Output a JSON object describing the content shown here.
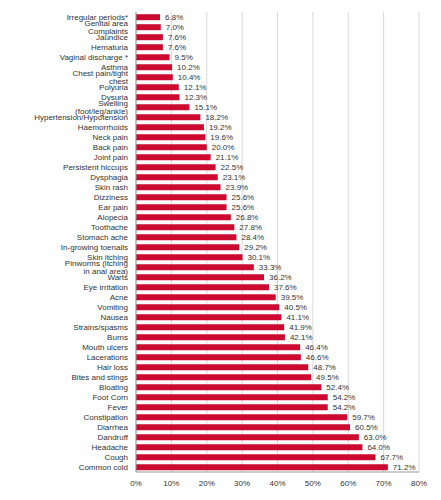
{
  "chart_data": {
    "type": "bar",
    "orientation": "horizontal",
    "color": "#cc0a2f",
    "grid": true,
    "data_labels": true,
    "categories": [
      "Irregular periods*",
      "Genital area Complaints",
      "Jaundice",
      "Hematuria",
      "Vaginal discharge *",
      "Asthma",
      "Chest pain/tight chest",
      "Polyuria",
      "Dysuria",
      "Swelling (foot/leg/ankle)",
      "Hypertension/Hypotension",
      "Haemorrhoids",
      "Neck pain",
      "Back pain",
      "Joint pain",
      "Persistent hiccups",
      "Dysphagia",
      "Skin rash",
      "Dizziness",
      "Ear pain",
      "Alopecia",
      "Toothache",
      "Stomach ache",
      "In-growing toenails",
      "Skin itching",
      "Pinworms (itching in anal area)",
      "Warts",
      "Eye irritation",
      "Acne",
      "Vomiting",
      "Nausea",
      "Strains/spasms",
      "Burns",
      "Mouth ulcers",
      "Lacerations",
      "Hair loss",
      "Bites and stings",
      "Bloating",
      "Foot Corn",
      "Fever",
      "Constipation",
      "Diarrhea",
      "Dandruff",
      "Headache",
      "Cough",
      "Common cold"
    ],
    "values": [
      6.8,
      7.0,
      7.6,
      7.6,
      9.5,
      10.2,
      10.4,
      12.1,
      12.3,
      15.1,
      18.2,
      19.2,
      19.6,
      20.0,
      21.1,
      22.5,
      23.1,
      23.9,
      25.6,
      25.6,
      26.8,
      27.8,
      28.4,
      29.2,
      30.1,
      33.3,
      36.2,
      37.6,
      39.5,
      40.5,
      41.1,
      41.9,
      42.1,
      46.4,
      46.6,
      48.7,
      49.5,
      52.4,
      54.2,
      54.2,
      59.7,
      60.5,
      63.0,
      64.0,
      67.7,
      71.2
    ],
    "value_labels": [
      "6.8%",
      "7.0%",
      "7.6%",
      "7.6%",
      "9.5%",
      "10.2%",
      "10.4%",
      "12.1%",
      "12.3%",
      "15.1%",
      "18.2%",
      "19.2%",
      "19.6%",
      "20.0%",
      "21.1%",
      "22.5%",
      "23.1%",
      "23.9%",
      "25.6%",
      "25.6%",
      "26.8%",
      "27.8%",
      "28.4%",
      "29.2%",
      "30.1%",
      "33.3%",
      "36.2%",
      "37.6%",
      "39.5%",
      "40.5%",
      "41.1%",
      "41.9%",
      "42.1%",
      "46.4%",
      "46.6%",
      "48.7%",
      "49.5%",
      "52.4%",
      "54.2%",
      "54.2%",
      "59.7%",
      "60.5%",
      "63.0%",
      "64.0%",
      "67.7%",
      "71.2%"
    ],
    "xlim": [
      0,
      80
    ],
    "xticks": [
      {
        "value": 0,
        "label": "0%"
      },
      {
        "value": 10,
        "label": "10%"
      },
      {
        "value": 20,
        "label": "20%"
      },
      {
        "value": 30,
        "label": "30%"
      },
      {
        "value": 40,
        "label": "40%"
      },
      {
        "value": 50,
        "label": "50%"
      },
      {
        "value": 60,
        "label": "60%"
      },
      {
        "value": 70,
        "label": "70%"
      },
      {
        "value": 80,
        "label": "80%"
      }
    ]
  }
}
